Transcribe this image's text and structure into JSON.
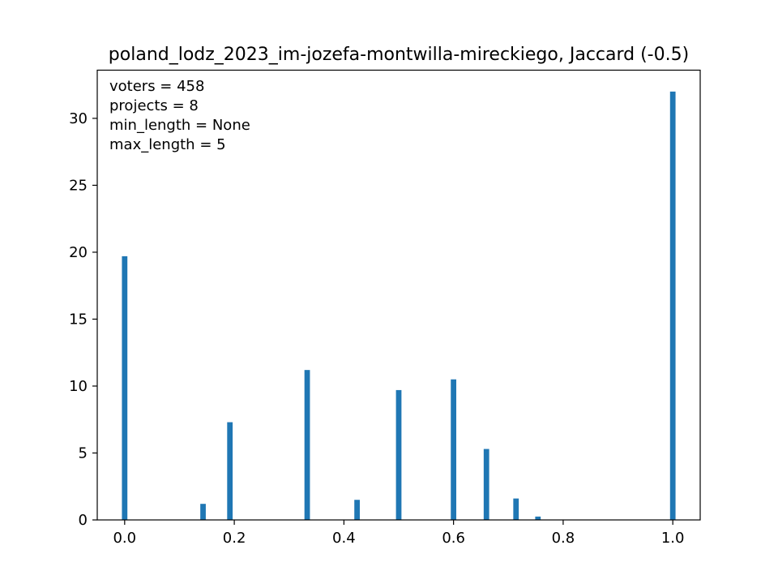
{
  "chart_data": {
    "type": "bar",
    "title": "poland_lodz_2023_im-jozefa-montwilla-mireckiego, Jaccard (-0.5)",
    "xlabel": "",
    "ylabel": "",
    "xlim": [
      -0.05,
      1.05
    ],
    "ylim": [
      0,
      33.6
    ],
    "bar_width": 0.01,
    "grid": false,
    "bar_color": "#1f77b4",
    "x_ticks": [
      {
        "value": 0.0,
        "label": "0.0"
      },
      {
        "value": 0.2,
        "label": "0.2"
      },
      {
        "value": 0.4,
        "label": "0.4"
      },
      {
        "value": 0.6,
        "label": "0.6"
      },
      {
        "value": 0.8,
        "label": "0.8"
      },
      {
        "value": 1.0,
        "label": "1.0"
      }
    ],
    "y_ticks": [
      {
        "value": 0,
        "label": "0"
      },
      {
        "value": 5,
        "label": "5"
      },
      {
        "value": 10,
        "label": "10"
      },
      {
        "value": 15,
        "label": "15"
      },
      {
        "value": 20,
        "label": "20"
      },
      {
        "value": 25,
        "label": "25"
      },
      {
        "value": 30,
        "label": "30"
      }
    ],
    "x": [
      0.0,
      0.143,
      0.192,
      0.333,
      0.424,
      0.5,
      0.6,
      0.66,
      0.714,
      0.754,
      1.0
    ],
    "values": [
      19.7,
      1.2,
      7.3,
      11.2,
      1.5,
      9.7,
      10.5,
      5.3,
      1.6,
      0.25,
      32.0
    ],
    "annotation_lines": [
      "voters = 458",
      "projects = 8",
      "min_length = None",
      "max_length = 5"
    ]
  }
}
